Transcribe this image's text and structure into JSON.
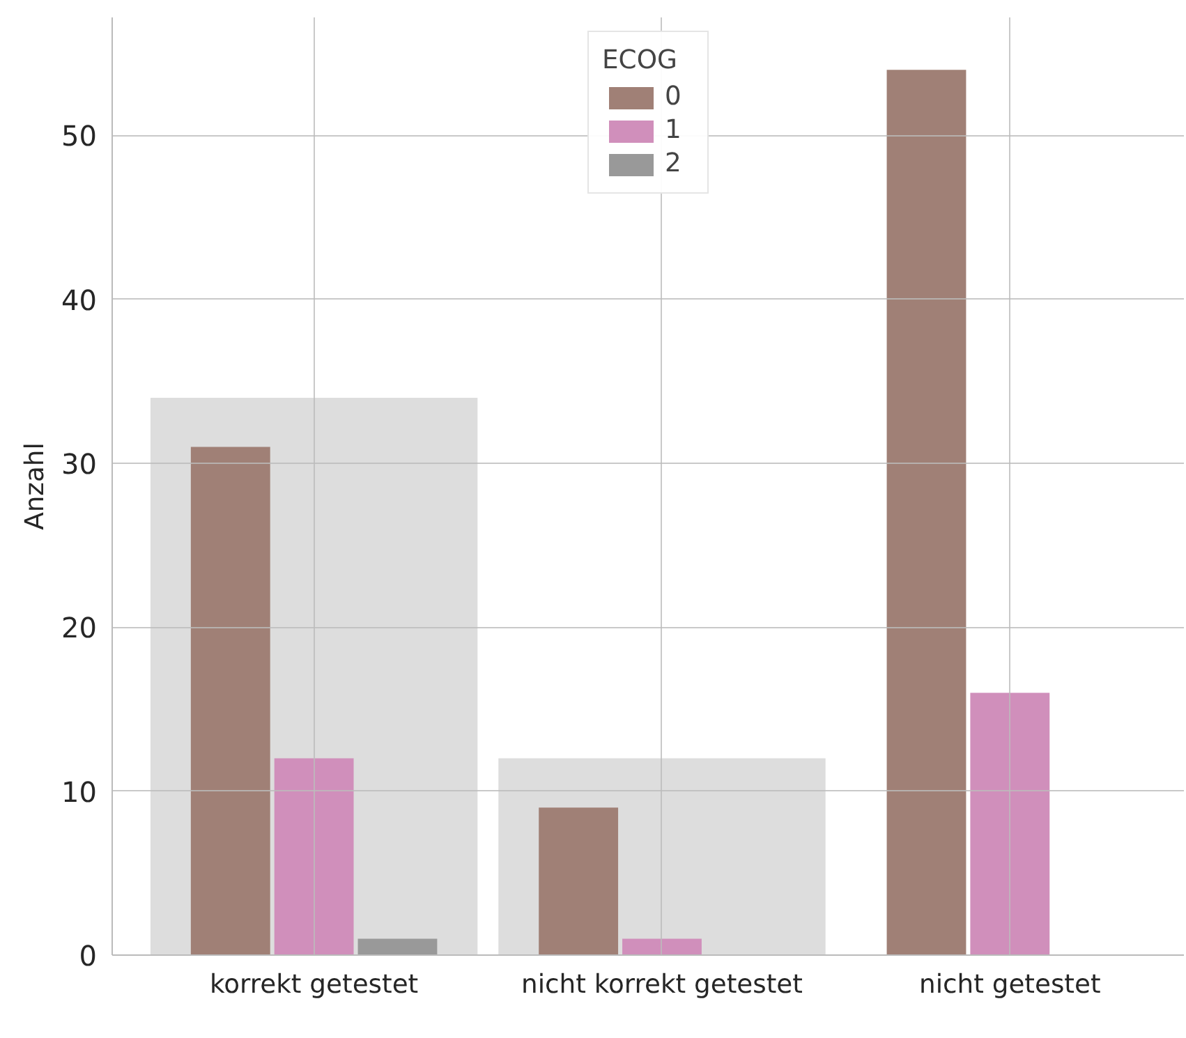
{
  "chart_data": {
    "type": "bar",
    "ylabel": "Anzahl",
    "legend_title": "ECOG",
    "categories": [
      "korrekt getestet",
      "nicht korrekt getestet",
      "nicht getestet"
    ],
    "series": [
      {
        "color": "#dddddd",
        "values": [
          34,
          12,
          null
        ]
      },
      {
        "name": "0",
        "color": "#a08076",
        "values": [
          31,
          9,
          54
        ]
      },
      {
        "name": "1",
        "color": "#d08fbb",
        "values": [
          12,
          1,
          16
        ]
      },
      {
        "name": "2",
        "color": "#999999",
        "values": [
          1,
          0,
          0
        ]
      }
    ],
    "ylim": [
      0,
      57.2
    ],
    "yticks": [
      0,
      10,
      20,
      30,
      40,
      50
    ],
    "grid": true,
    "legend": "top"
  }
}
